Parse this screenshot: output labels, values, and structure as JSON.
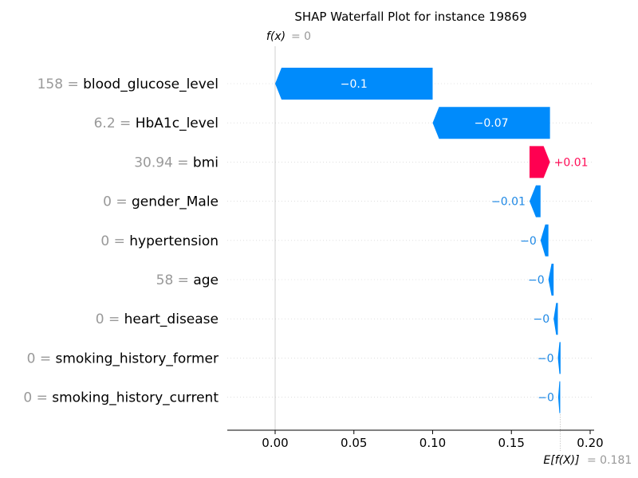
{
  "chart_data": {
    "type": "waterfall",
    "title": "SHAP Waterfall Plot for instance 19869",
    "fx_label": "f(x)",
    "fx_value": "= 0",
    "efx_label": "E[f(X)]",
    "efx_value": "= 0.181",
    "base_value": 0.181,
    "xlim": [
      -0.031,
      0.203
    ],
    "xticks": [
      0.0,
      0.05,
      0.1,
      0.15,
      0.2
    ],
    "xtick_labels": [
      "0.00",
      "0.05",
      "0.10",
      "0.15",
      "0.20"
    ],
    "colors": {
      "negative": "#008bfb",
      "positive": "#ff0051",
      "neg_text": "#1e88e5",
      "pos_text": "#ff0d57"
    },
    "features": [
      {
        "value": "158",
        "name": "blood_glucose_level",
        "start": 0.1,
        "end": 0.0,
        "label": "−0.1"
      },
      {
        "value": "6.2",
        "name": "HbA1c_level",
        "start": 0.1745,
        "end": 0.1,
        "label": "−0.07"
      },
      {
        "value": "30.94",
        "name": "bmi",
        "start": 0.1615,
        "end": 0.1745,
        "label": "+0.01"
      },
      {
        "value": "0",
        "name": "gender_Male",
        "start": 0.1685,
        "end": 0.1615,
        "label": "−0.01"
      },
      {
        "value": "0",
        "name": "hypertension",
        "start": 0.1735,
        "end": 0.1685,
        "label": "−0"
      },
      {
        "value": "58",
        "name": "age",
        "start": 0.1768,
        "end": 0.1735,
        "label": "−0"
      },
      {
        "value": "0",
        "name": "heart_disease",
        "start": 0.1795,
        "end": 0.1768,
        "label": "−0"
      },
      {
        "value": "0",
        "name": "smoking_history_former",
        "start": 0.1812,
        "end": 0.1795,
        "label": "−0"
      },
      {
        "value": "0",
        "name": "smoking_history_current",
        "start": 0.181,
        "end": 0.1797,
        "label": "−0"
      }
    ]
  }
}
